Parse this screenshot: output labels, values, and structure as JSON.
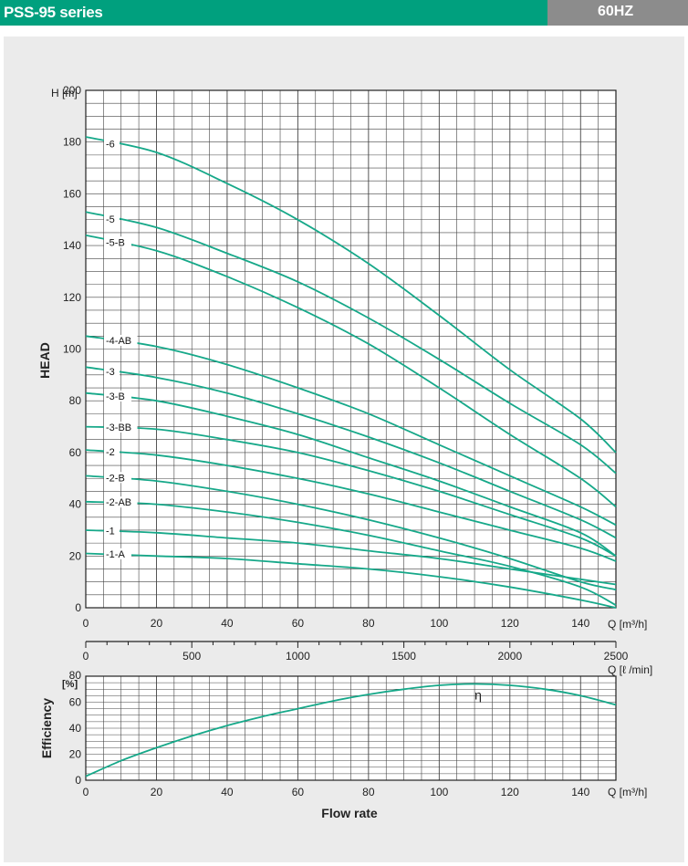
{
  "header": {
    "title": "PSS-95 series",
    "frequency": "60HZ",
    "colors": {
      "title_bg": "#00a07e",
      "freq_bg": "#8c8c8c",
      "panel_bg": "#ebebeb",
      "curve": "#16a889"
    }
  },
  "chart_data": [
    {
      "type": "line",
      "ylabel": "HEAD",
      "yunit": "H [m]",
      "xunit": "Q [m³/h]",
      "xlim": [
        0,
        150
      ],
      "ylim": [
        0,
        200
      ],
      "xticks": [
        "0",
        "20",
        "40",
        "60",
        "80",
        "100",
        "120",
        "140"
      ],
      "yticks": [
        "0",
        "20",
        "40",
        "60",
        "80",
        "100",
        "120",
        "140",
        "160",
        "180",
        "200"
      ],
      "grid": true,
      "series": [
        {
          "name": "-6",
          "x": [
            0,
            20,
            40,
            60,
            80,
            100,
            120,
            140,
            150
          ],
          "y": [
            182,
            176,
            164,
            150,
            133,
            113,
            92,
            73,
            60
          ]
        },
        {
          "name": "-5",
          "x": [
            0,
            20,
            40,
            60,
            80,
            100,
            120,
            140,
            150
          ],
          "y": [
            153,
            147,
            137,
            126,
            112,
            96,
            79,
            63,
            52
          ]
        },
        {
          "name": "-5-B",
          "x": [
            0,
            20,
            40,
            60,
            80,
            100,
            120,
            140,
            150
          ],
          "y": [
            144,
            138,
            128,
            116,
            102,
            85,
            67,
            50,
            39
          ]
        },
        {
          "name": "-4-AB",
          "x": [
            0,
            20,
            40,
            60,
            80,
            100,
            120,
            140,
            150
          ],
          "y": [
            105,
            101,
            94,
            85,
            75,
            63,
            51,
            39,
            32
          ]
        },
        {
          "name": "-3",
          "x": [
            0,
            20,
            40,
            60,
            80,
            100,
            120,
            140,
            150
          ],
          "y": [
            93,
            89,
            83,
            75,
            66,
            56,
            45,
            34,
            27
          ]
        },
        {
          "name": "-3-B",
          "x": [
            0,
            20,
            40,
            60,
            80,
            100,
            120,
            140,
            150
          ],
          "y": [
            83,
            80,
            74,
            67,
            58,
            49,
            39,
            29,
            20
          ]
        },
        {
          "name": "-3-BB",
          "x": [
            0,
            20,
            40,
            60,
            80,
            100,
            120,
            140,
            150
          ],
          "y": [
            70,
            69,
            65,
            60,
            53,
            45,
            36,
            27,
            20
          ]
        },
        {
          "name": "-2",
          "x": [
            0,
            20,
            40,
            60,
            80,
            100,
            120,
            140,
            150
          ],
          "y": [
            61,
            59,
            55,
            50,
            44,
            37,
            30,
            23,
            18
          ]
        },
        {
          "name": "-2-B",
          "x": [
            0,
            20,
            40,
            60,
            80,
            100,
            120,
            140,
            150
          ],
          "y": [
            51,
            49,
            45,
            40,
            34,
            27,
            19,
            10,
            7
          ]
        },
        {
          "name": "-2-AB",
          "x": [
            0,
            20,
            40,
            60,
            80,
            100,
            120,
            140,
            150
          ],
          "y": [
            41,
            40,
            37,
            33,
            28,
            22,
            16,
            8,
            1
          ]
        },
        {
          "name": "-1",
          "x": [
            0,
            20,
            40,
            60,
            80,
            100,
            120,
            140,
            150
          ],
          "y": [
            30,
            29,
            27,
            25,
            22,
            19,
            15,
            11,
            9
          ]
        },
        {
          "name": "-1-A",
          "x": [
            0,
            20,
            40,
            60,
            80,
            100,
            120,
            140,
            150
          ],
          "y": [
            21,
            20,
            19,
            17,
            15,
            12,
            8,
            3,
            0
          ]
        }
      ]
    },
    {
      "type": "axis",
      "xunit": "Q [ℓ /min]",
      "xlim": [
        0,
        2500
      ],
      "xticks": [
        "0",
        "500",
        "1000",
        "1500",
        "2000",
        "2500"
      ]
    },
    {
      "type": "line",
      "ylabel": "Efficiency",
      "yunit": "[%]",
      "xlabel": "Flow rate",
      "xunit": "Q [m³/h]",
      "xlim": [
        0,
        150
      ],
      "ylim": [
        0,
        80
      ],
      "xticks": [
        "0",
        "20",
        "40",
        "60",
        "80",
        "100",
        "120",
        "140"
      ],
      "yticks": [
        "0",
        "20",
        "40",
        "60",
        "80"
      ],
      "grid": true,
      "series": [
        {
          "name": "η",
          "x": [
            0,
            10,
            20,
            30,
            40,
            50,
            60,
            70,
            80,
            90,
            100,
            110,
            120,
            130,
            140,
            150
          ],
          "y": [
            3,
            15,
            25,
            34,
            42,
            49,
            55,
            61,
            66,
            70,
            73,
            74,
            73,
            70,
            65,
            58
          ]
        }
      ]
    }
  ]
}
